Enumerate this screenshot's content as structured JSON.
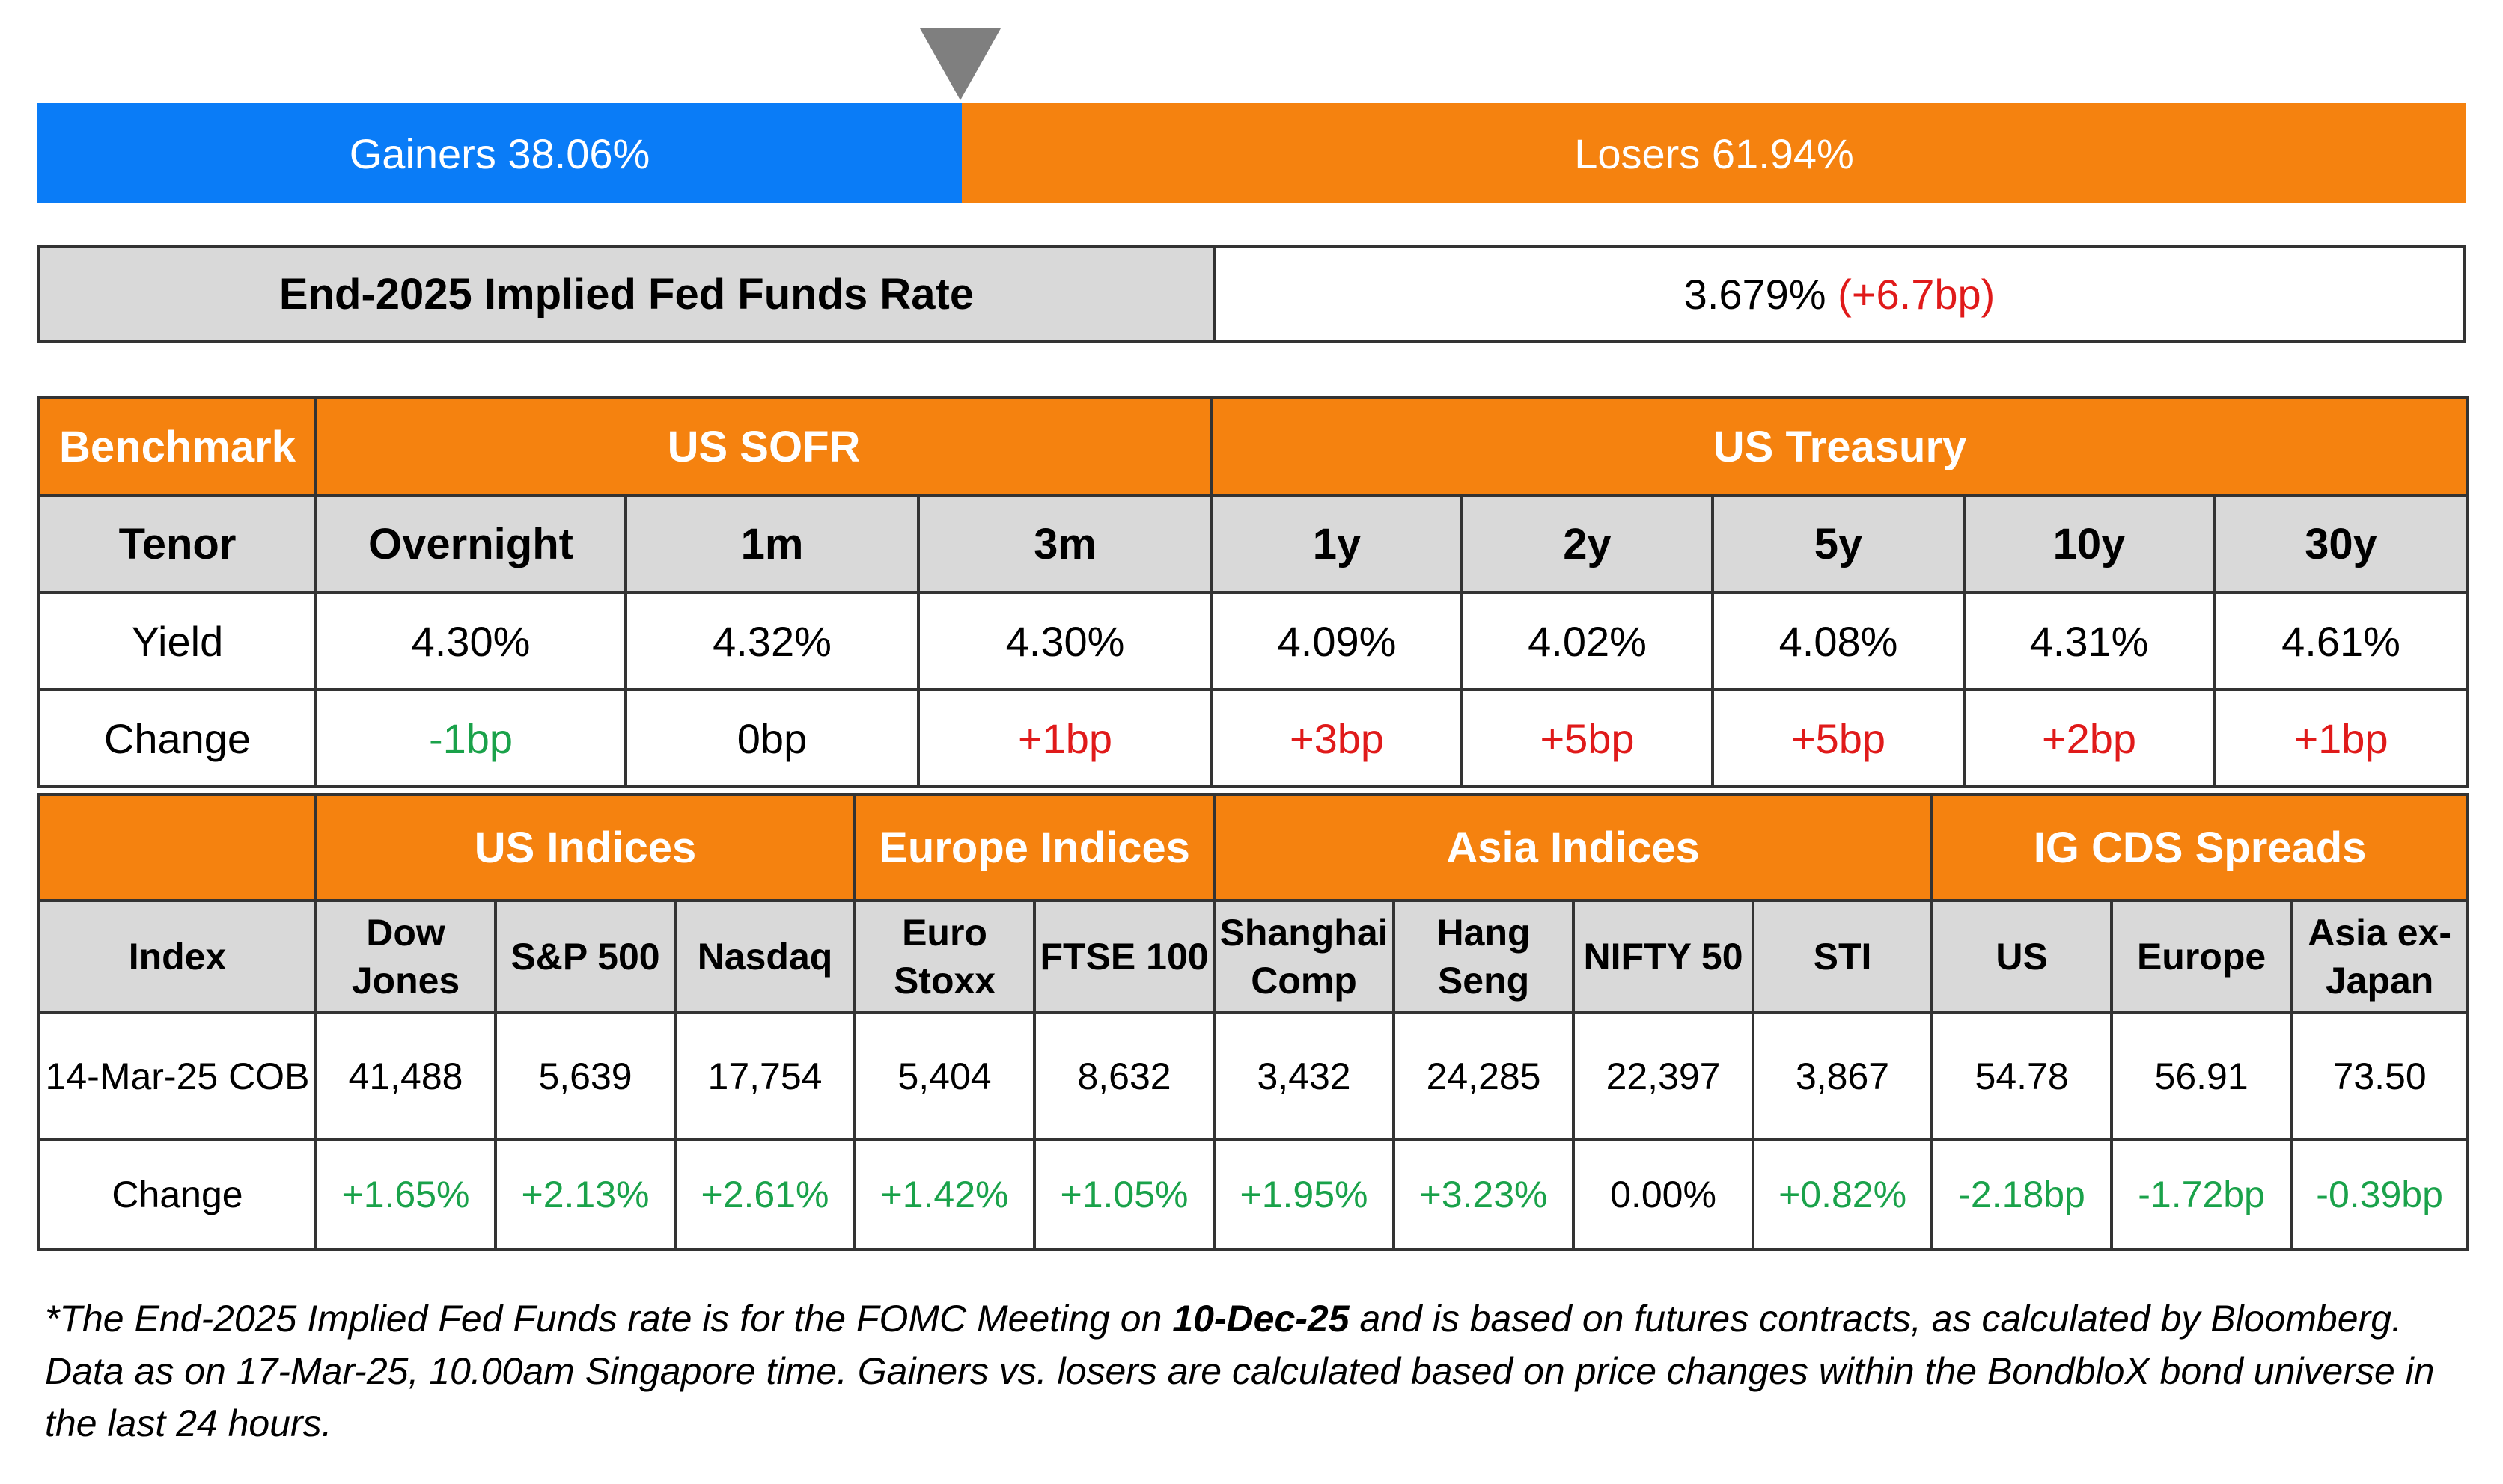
{
  "gainers_losers": {
    "gainers_label": "Gainers 38.06%",
    "losers_label": "Losers 61.94%",
    "gainers_pct": 38.06,
    "losers_pct": 61.94,
    "colors": {
      "gainers": "#0a7cf7",
      "losers": "#f5820f",
      "pointer": "#7f7f7f"
    }
  },
  "fed_funds": {
    "label": "End-2025 Implied Fed Funds Rate",
    "value": "3.679%",
    "change": "(+6.7bp)"
  },
  "rates_table": {
    "corner": "Benchmark",
    "groups": [
      "US SOFR",
      "US Treasury"
    ],
    "tenor_label": "Tenor",
    "tenors": [
      "Overnight",
      "1m",
      "3m",
      "1y",
      "2y",
      "5y",
      "10y",
      "30y"
    ],
    "yield_label": "Yield",
    "yields": [
      "4.30%",
      "4.32%",
      "4.30%",
      "4.09%",
      "4.02%",
      "4.08%",
      "4.31%",
      "4.61%"
    ],
    "change_label": "Change",
    "changes": [
      "-1bp",
      "0bp",
      "+1bp",
      "+3bp",
      "+5bp",
      "+5bp",
      "+2bp",
      "+1bp"
    ]
  },
  "indices_table": {
    "groups": [
      "US Indices",
      "Europe Indices",
      "Asia Indices",
      "IG CDS Spreads"
    ],
    "index_label": "Index",
    "names": [
      [
        "Dow",
        "Jones"
      ],
      [
        "S&P 500"
      ],
      [
        "Nasdaq"
      ],
      [
        "Euro",
        "Stoxx"
      ],
      [
        "FTSE 100"
      ],
      [
        "Shanghai",
        "Comp"
      ],
      [
        "Hang",
        "Seng"
      ],
      [
        "NIFTY 50"
      ],
      [
        "STI"
      ],
      [
        "US"
      ],
      [
        "Europe"
      ],
      [
        "Asia ex-",
        "Japan"
      ]
    ],
    "date_label": "14-Mar-25 COB",
    "values": [
      "41,488",
      "5,639",
      "17,754",
      "5,404",
      "8,632",
      "3,432",
      "24,285",
      "22,397",
      "3,867",
      "54.78",
      "56.91",
      "73.50"
    ],
    "change_label": "Change",
    "changes": [
      "+1.65%",
      "+2.13%",
      "+2.61%",
      "+1.42%",
      "+1.05%",
      "+1.95%",
      "+3.23%",
      "0.00%",
      "+0.82%",
      "-2.18bp",
      "-1.72bp",
      "-0.39bp"
    ]
  },
  "footnote": {
    "part1": "*The End-2025 Implied Fed Funds rate is for the FOMC Meeting on ",
    "bold": "10-Dec-25",
    "part2": " and is based on futures contracts, as calculated by Bloomberg. Data as on 17-Mar-25, 10.00am Singapore time. Gainers vs. losers are calculated based on price changes within the BondbloX bond universe in the last 24 hours."
  }
}
